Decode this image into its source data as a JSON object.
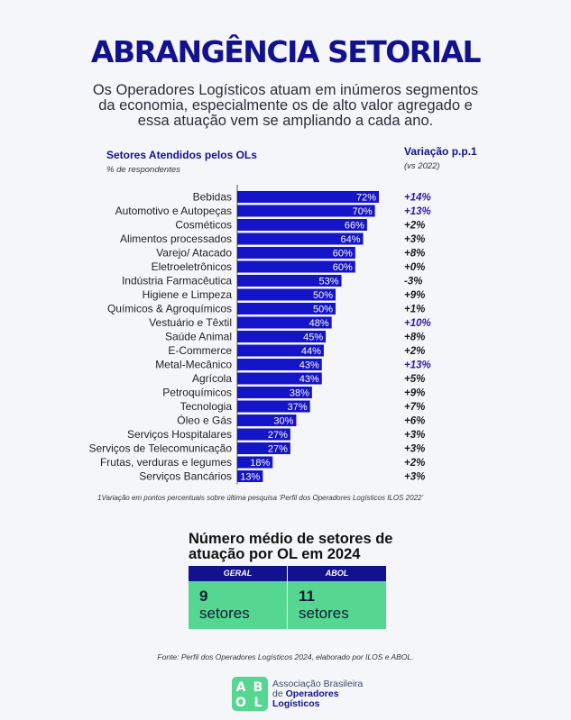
{
  "title": "ABRANGÊNCIA SETORIAL",
  "subtitle": "Os Operadores Logísticos atuam em inúmeros segmentos da economia, especialmente os de alto valor agregado e essa atuação vem se ampliando a cada ano.",
  "chart_header": {
    "left_title": "Setores Atendidos pelos OLs",
    "left_subtitle": "% de respondentes",
    "right_title": "Variação p.p.1",
    "right_subtitle": "(vs 2022)"
  },
  "chart_data": {
    "type": "bar",
    "orientation": "horizontal",
    "categories": [
      "Bebidas",
      "Automotivo e Autopeças",
      "Cosméticos",
      "Alimentos processados",
      "Varejo/ Atacado",
      "Eletroeletrônicos",
      "Indústria Farmacêutica",
      "Higiene e Limpeza",
      "Químicos & Agroquímicos",
      "Vestuário e Têxtil",
      "Saúde Animal",
      "E-Commerce",
      "Metal-Mecânico",
      "Agrícola",
      "Petroquímicos",
      "Tecnologia",
      "Óleo e Gás",
      "Serviços Hospitalares",
      "Serviços de Telecomunicação",
      "Frutas, verduras e legumes",
      "Serviços Bancários"
    ],
    "values": [
      72,
      70,
      66,
      64,
      60,
      60,
      53,
      50,
      50,
      48,
      45,
      44,
      43,
      43,
      38,
      37,
      30,
      27,
      27,
      18,
      13
    ],
    "value_labels": [
      "72%",
      "70%",
      "66%",
      "64%",
      "60%",
      "60%",
      "53%",
      "50%",
      "50%",
      "48%",
      "45%",
      "44%",
      "43%",
      "43%",
      "38%",
      "37%",
      "30%",
      "27%",
      "27%",
      "18%",
      "13%"
    ],
    "variation": [
      "+14%",
      "+13%",
      "+2%",
      "+3%",
      "+8%",
      "+0%",
      "-3%",
      "+9%",
      "+1%",
      "+10%",
      "+8%",
      "+2%",
      "+13%",
      "+5%",
      "+9%",
      "+7%",
      "+6%",
      "+3%",
      "+3%",
      "+2%",
      "+3%"
    ],
    "highlighted": [
      true,
      true,
      false,
      false,
      false,
      false,
      false,
      false,
      false,
      true,
      false,
      false,
      true,
      false,
      false,
      false,
      false,
      false,
      false,
      false,
      false
    ],
    "xlim": [
      0,
      72
    ],
    "bar_color": "#1414c8",
    "highlight_color": "#2b1aa8"
  },
  "footnote": "1Variação em pontos percentuais sobre última pesquisa ‘Perfil dos Operadores Logísticos ILOS 2022’",
  "summary": {
    "title": "Número médio de setores de atuação por OL em 2024",
    "cards": [
      {
        "label": "GERAL",
        "number": "9",
        "unit": "setores"
      },
      {
        "label": "ABOL",
        "number": "11",
        "unit": "setores"
      }
    ]
  },
  "source": "Fonte: Perfil dos Operadores Logísticos 2024, elaborado por ILOS e ABOL.",
  "logo": {
    "letters": [
      "A",
      "B",
      "O",
      "L"
    ],
    "line1": "Associação Brasileira",
    "line2_prefix": "de",
    "line2_bold": "Operadores",
    "line3": "Logísticos",
    "color": "#55d691"
  }
}
